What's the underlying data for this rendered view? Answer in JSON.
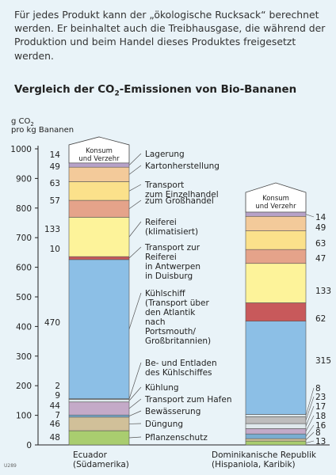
{
  "intro_text": "Für jedes Produkt kann der „ökologische Rucksack“ berechnet werden. Er beinhaltet auch die Treibhausgase, die während der Produktion und beim Handel dieses Produktes freigesetzt werden.",
  "title_prefix": "Vergleich der CO",
  "title_sub": "2",
  "title_suffix": "-Emissionen von Bio-Bananen",
  "image_code": "U289",
  "colors": {
    "pflanzenschutz": "#a9cd6f",
    "duengung": "#d1c099",
    "bewaesserung": "#7aaed1",
    "hafen": "#c4aac8",
    "kuehlung": "#dfe9ec",
    "entladen": "#bdbdbd",
    "kuehlschiff": "#8cbfe6",
    "reiferei_transport": "#c8595b",
    "reiferei": "#fdf39a",
    "grosshandel": "#e5a38a",
    "einzelhandel": "#fbe18b",
    "karton": "#f3ca9a",
    "lagerung": "#b7a2c8",
    "konsum_fill": "#ffffff",
    "axis": "#222222",
    "grid": "#cfd9de"
  },
  "chart_data": {
    "type": "stacked-bar",
    "ylabel_line1": "g CO",
    "ylabel_sub": "2",
    "ylabel_line2": "pro kg Bananen",
    "ylim": [
      0,
      1000
    ],
    "yticks": [
      0,
      100,
      200,
      300,
      400,
      500,
      600,
      700,
      800,
      900,
      1000
    ],
    "top_label_line1": "Konsum",
    "top_label_line2": "und Verzehr",
    "segments": [
      {
        "key": "pflanzenschutz",
        "labels": [
          "Pflanzenschutz"
        ]
      },
      {
        "key": "duengung",
        "labels": [
          "Düngung"
        ]
      },
      {
        "key": "bewaesserung",
        "labels": [
          "Bewässerung"
        ]
      },
      {
        "key": "hafen",
        "labels": [
          "Transport zum Hafen"
        ]
      },
      {
        "key": "kuehlung",
        "labels": [
          "Kühlung"
        ]
      },
      {
        "key": "entladen",
        "labels": [
          "Be- und Entladen",
          "des Kühlschiffes"
        ]
      },
      {
        "key": "kuehlschiff",
        "labels": [
          "Kühlschiff",
          "(Transport über",
          "den Atlantik",
          "nach",
          "Portsmouth/",
          "Großbritannien)"
        ]
      },
      {
        "key": "reiferei_transport",
        "labels": [
          "Transport zur",
          "Reiferei",
          "in Antwerpen",
          "in Duisburg"
        ]
      },
      {
        "key": "reiferei",
        "labels": [
          "Reiferei",
          "(klimatisiert)"
        ]
      },
      {
        "key": "grosshandel",
        "labels": [
          "zum Großhandel"
        ]
      },
      {
        "key": "einzelhandel",
        "labels": [
          "Transport",
          "zum Einzelhandel"
        ]
      },
      {
        "key": "karton",
        "labels": [
          "Kartonherstellung"
        ]
      },
      {
        "key": "lagerung",
        "labels": [
          "Lagerung"
        ]
      }
    ],
    "series": [
      {
        "name_line1": "Ecuador",
        "name_line2": "(Südamerika)",
        "values": [
          48,
          46,
          7,
          44,
          9,
          2,
          470,
          10,
          133,
          57,
          63,
          49,
          14
        ]
      },
      {
        "name_line1": "Dominikanische Republik",
        "name_line2": "(Hispaniola, Karibik)",
        "values": [
          13,
          8,
          16,
          18,
          17,
          23,
          8,
          315,
          62,
          133,
          47,
          63,
          49,
          14
        ]
      }
    ],
    "series_note": "Dominican bar segments (bottom to top): Pflanzenschutz 13, Düngung 8, Bewässerung 16, Transport zum Hafen 18, Kühlung 17, Be- und Entladen 23, extra 8, Kühlschiff 315, Transport zur Reiferei 62, Reiferei 133, Großhandel 47, Einzelhandel 63, Karton 49, Lagerung 14"
  }
}
